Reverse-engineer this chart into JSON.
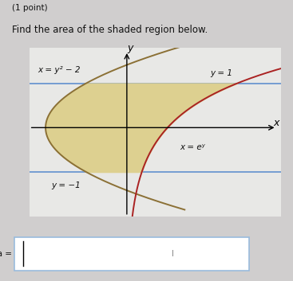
{
  "title_line1": "(1 point)",
  "title_line2": "Find the area of the shaded region below.",
  "label_x_eq_y2_2": "x = y² − 2",
  "label_y_eq_1": "y = 1",
  "label_x_eq_ey": "x = eʸ",
  "label_y_eq_neg1": "y = −1",
  "label_y_axis": "y",
  "label_x_axis": "x",
  "shaded_color": "#ddd090",
  "parabola_color": "#8B7035",
  "exp_color": "#aa2222",
  "line_y1_color": "#5588cc",
  "line_yn1_color": "#5588cc",
  "fig_bg_color": "#d0cece",
  "plot_bg_color": "#e8e8e6",
  "y_range": [
    -2.0,
    1.8
  ],
  "x_range": [
    -2.4,
    3.8
  ],
  "answer_box_label": "Area = ",
  "answer_box_color": "#cde0f0",
  "text_color": "#111111",
  "font_size_small": 7.5,
  "font_size_body": 8.5,
  "font_size_axis": 9
}
